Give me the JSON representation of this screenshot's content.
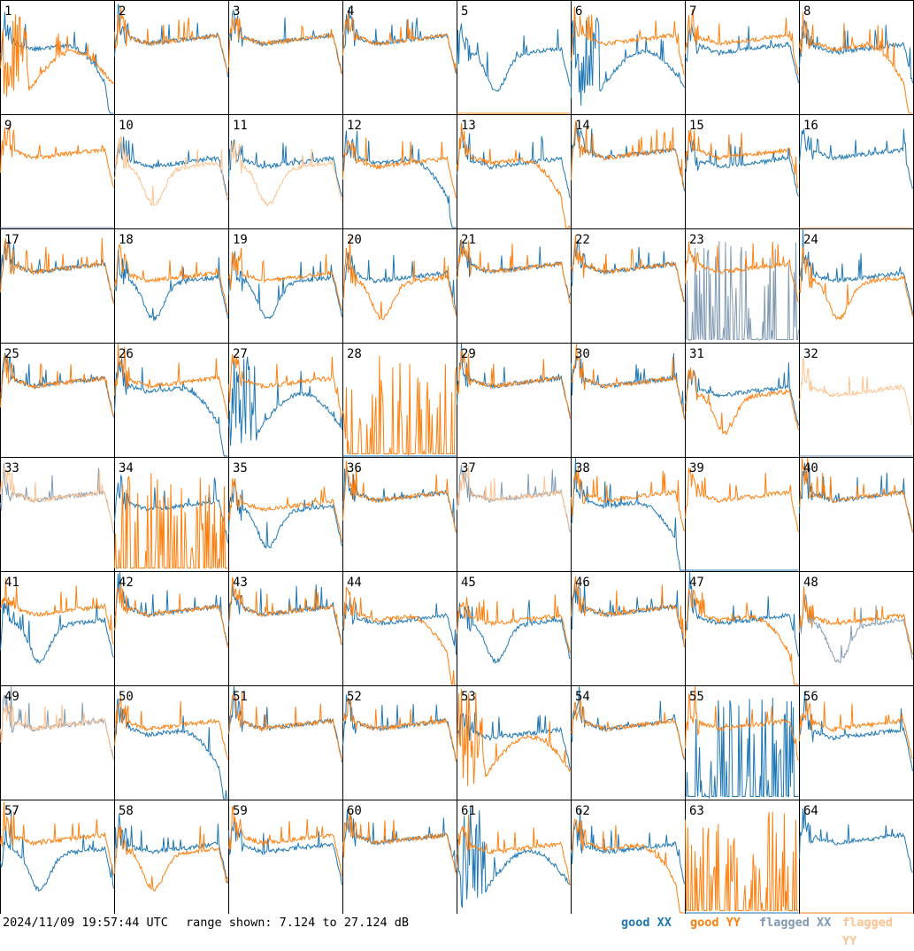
{
  "chart_data": {
    "type": "line",
    "timestamp": "2024/11/09 19:57:44 UTC",
    "range_text": "range shown: 7.124 to 27.124 dB",
    "yrange_db": [
      7.124,
      27.124
    ],
    "layout": "8x8 grid of small multiples, one per tile",
    "legend": [
      {
        "label": "good XX",
        "color": "#1f77b4"
      },
      {
        "label": "good YY",
        "color": "#ff7f0e"
      },
      {
        "label": "flagged XX",
        "color": "#7f99b2"
      },
      {
        "label": "flagged YY",
        "color": "#ffc28f"
      }
    ],
    "tiles": [
      {
        "id": "1",
        "xx": "good",
        "yy": "good",
        "xx_shape": 3,
        "yy_shape": 4
      },
      {
        "id": "2",
        "xx": "good",
        "yy": "good",
        "xx_shape": 0,
        "yy_shape": 0
      },
      {
        "id": "3",
        "xx": "good",
        "yy": "good",
        "xx_shape": 0,
        "yy_shape": 0
      },
      {
        "id": "4",
        "xx": "good",
        "yy": "good",
        "xx_shape": 0,
        "yy_shape": 0
      },
      {
        "id": "5",
        "xx": "good",
        "yy": "good",
        "xx_shape": 2,
        "yy_shape": 5
      },
      {
        "id": "6",
        "xx": "good",
        "yy": "good",
        "xx_shape": 4,
        "yy_shape": 0
      },
      {
        "id": "7",
        "xx": "good",
        "yy": "good",
        "xx_shape": 1,
        "yy_shape": 0
      },
      {
        "id": "8",
        "xx": "good",
        "yy": "good",
        "xx_shape": 1,
        "yy_shape": 3
      },
      {
        "id": "9",
        "xx": "flagged",
        "yy": "good",
        "xx_shape": 5,
        "yy_shape": 0
      },
      {
        "id": "10",
        "xx": "good",
        "yy": "flagged",
        "xx_shape": 1,
        "yy_shape": 2
      },
      {
        "id": "11",
        "xx": "good",
        "yy": "flagged",
        "xx_shape": 1,
        "yy_shape": 2
      },
      {
        "id": "12",
        "xx": "good",
        "yy": "good",
        "xx_shape": 3,
        "yy_shape": 1
      },
      {
        "id": "13",
        "xx": "good",
        "yy": "good",
        "xx_shape": 1,
        "yy_shape": 3
      },
      {
        "id": "14",
        "xx": "good",
        "yy": "good",
        "xx_shape": 0,
        "yy_shape": 0
      },
      {
        "id": "15",
        "xx": "good",
        "yy": "good",
        "xx_shape": 1,
        "yy_shape": 0
      },
      {
        "id": "16",
        "xx": "good",
        "yy": "flagged",
        "xx_shape": 0,
        "yy_shape": 5
      },
      {
        "id": "17",
        "xx": "good",
        "yy": "good",
        "xx_shape": 0,
        "yy_shape": 0
      },
      {
        "id": "18",
        "xx": "good",
        "yy": "good",
        "xx_shape": 2,
        "yy_shape": 1
      },
      {
        "id": "19",
        "xx": "good",
        "yy": "good",
        "xx_shape": 2,
        "yy_shape": 1
      },
      {
        "id": "20",
        "xx": "good",
        "yy": "good",
        "xx_shape": 1,
        "yy_shape": 2
      },
      {
        "id": "21",
        "xx": "good",
        "yy": "good",
        "xx_shape": 0,
        "yy_shape": 0
      },
      {
        "id": "22",
        "xx": "good",
        "yy": "good",
        "xx_shape": 0,
        "yy_shape": 0
      },
      {
        "id": "23",
        "xx": "flagged",
        "yy": "good",
        "xx_shape": 6,
        "yy_shape": 0
      },
      {
        "id": "24",
        "xx": "good",
        "yy": "good",
        "xx_shape": 1,
        "yy_shape": 2
      },
      {
        "id": "25",
        "xx": "good",
        "yy": "good",
        "xx_shape": 0,
        "yy_shape": 0
      },
      {
        "id": "26",
        "xx": "good",
        "yy": "good",
        "xx_shape": 3,
        "yy_shape": 0
      },
      {
        "id": "27",
        "xx": "good",
        "yy": "good",
        "xx_shape": 4,
        "yy_shape": 0
      },
      {
        "id": "28",
        "xx": "good",
        "yy": "good",
        "xx_shape": 5,
        "yy_shape": 6
      },
      {
        "id": "29",
        "xx": "good",
        "yy": "good",
        "xx_shape": 0,
        "yy_shape": 0
      },
      {
        "id": "30",
        "xx": "good",
        "yy": "good",
        "xx_shape": 0,
        "yy_shape": 0
      },
      {
        "id": "31",
        "xx": "good",
        "yy": "good",
        "xx_shape": 1,
        "yy_shape": 2
      },
      {
        "id": "32",
        "xx": "flagged",
        "yy": "flagged",
        "xx_shape": 5,
        "yy_shape": 1
      },
      {
        "id": "33",
        "xx": "flagged",
        "yy": "flagged",
        "xx_shape": 0,
        "yy_shape": 0
      },
      {
        "id": "34",
        "xx": "good",
        "yy": "good",
        "xx_shape": 1,
        "yy_shape": 6
      },
      {
        "id": "35",
        "xx": "good",
        "yy": "good",
        "xx_shape": 2,
        "yy_shape": 1
      },
      {
        "id": "36",
        "xx": "good",
        "yy": "good",
        "xx_shape": 0,
        "yy_shape": 0
      },
      {
        "id": "37",
        "xx": "flagged",
        "yy": "flagged",
        "xx_shape": 0,
        "yy_shape": 0
      },
      {
        "id": "38",
        "xx": "good",
        "yy": "good",
        "xx_shape": 3,
        "yy_shape": 0
      },
      {
        "id": "39",
        "xx": "good",
        "yy": "good",
        "xx_shape": 5,
        "yy_shape": 0
      },
      {
        "id": "40",
        "xx": "good",
        "yy": "good",
        "xx_shape": 0,
        "yy_shape": 0
      },
      {
        "id": "41",
        "xx": "good",
        "yy": "good",
        "xx_shape": 2,
        "yy_shape": 0
      },
      {
        "id": "42",
        "xx": "good",
        "yy": "good",
        "xx_shape": 0,
        "yy_shape": 0
      },
      {
        "id": "43",
        "xx": "good",
        "yy": "good",
        "xx_shape": 0,
        "yy_shape": 0
      },
      {
        "id": "44",
        "xx": "good",
        "yy": "good",
        "xx_shape": 1,
        "yy_shape": 3
      },
      {
        "id": "45",
        "xx": "good",
        "yy": "good",
        "xx_shape": 2,
        "yy_shape": 1
      },
      {
        "id": "46",
        "xx": "good",
        "yy": "good",
        "xx_shape": 0,
        "yy_shape": 0
      },
      {
        "id": "47",
        "xx": "good",
        "yy": "good",
        "xx_shape": 1,
        "yy_shape": 3
      },
      {
        "id": "48",
        "xx": "flagged",
        "yy": "good",
        "xx_shape": 2,
        "yy_shape": 1
      },
      {
        "id": "49",
        "xx": "flagged",
        "yy": "flagged",
        "xx_shape": 0,
        "yy_shape": 0
      },
      {
        "id": "50",
        "xx": "good",
        "yy": "good",
        "xx_shape": 3,
        "yy_shape": 0
      },
      {
        "id": "51",
        "xx": "good",
        "yy": "good",
        "xx_shape": 0,
        "yy_shape": 0
      },
      {
        "id": "52",
        "xx": "good",
        "yy": "good",
        "xx_shape": 0,
        "yy_shape": 0
      },
      {
        "id": "53",
        "xx": "good",
        "yy": "good",
        "xx_shape": 1,
        "yy_shape": 4
      },
      {
        "id": "54",
        "xx": "good",
        "yy": "good",
        "xx_shape": 0,
        "yy_shape": 0
      },
      {
        "id": "55",
        "xx": "good",
        "yy": "good",
        "xx_shape": 6,
        "yy_shape": 0
      },
      {
        "id": "56",
        "xx": "good",
        "yy": "good",
        "xx_shape": 1,
        "yy_shape": 0
      },
      {
        "id": "57",
        "xx": "good",
        "yy": "good",
        "xx_shape": 2,
        "yy_shape": 0
      },
      {
        "id": "58",
        "xx": "good",
        "yy": "good",
        "xx_shape": 1,
        "yy_shape": 2
      },
      {
        "id": "59",
        "xx": "good",
        "yy": "good",
        "xx_shape": 1,
        "yy_shape": 0
      },
      {
        "id": "60",
        "xx": "good",
        "yy": "good",
        "xx_shape": 0,
        "yy_shape": 0
      },
      {
        "id": "61",
        "xx": "good",
        "yy": "good",
        "xx_shape": 4,
        "yy_shape": 1
      },
      {
        "id": "62",
        "xx": "good",
        "yy": "good",
        "xx_shape": 1,
        "yy_shape": 3
      },
      {
        "id": "63",
        "xx": "good",
        "yy": "good",
        "xx_shape": 5,
        "yy_shape": 6
      },
      {
        "id": "64",
        "xx": "good",
        "yy": "good",
        "xx_shape": 0,
        "yy_shape": 5
      }
    ]
  }
}
